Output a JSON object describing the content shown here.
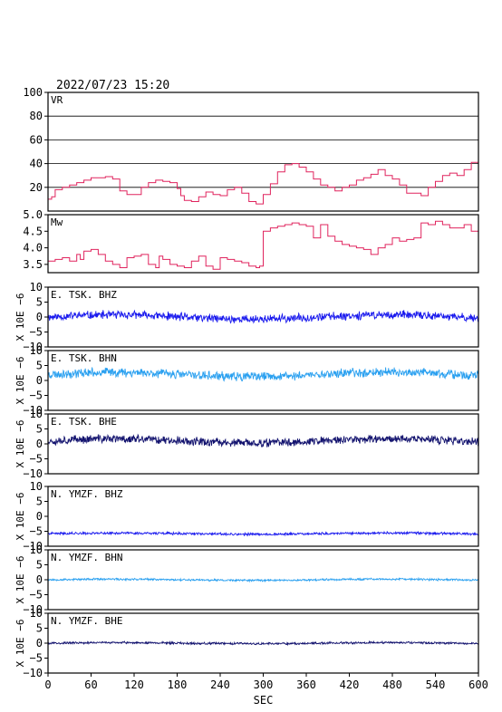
{
  "header": {
    "timestamp": "2022/07/23  15:20"
  },
  "colors": {
    "vr": "#e0245e",
    "mw": "#e0245e",
    "bhz": "#1a1aee",
    "bhn": "#2aa0f0",
    "bhe": "#12126e",
    "frame": "#000000"
  },
  "chart_data": [
    {
      "type": "line",
      "name": "vr-panel",
      "label": "VR",
      "ylim": [
        0,
        100
      ],
      "yticks": [
        "20",
        "40",
        "60",
        "80",
        "100"
      ],
      "grid": true,
      "x": [
        0,
        5,
        10,
        20,
        30,
        40,
        50,
        60,
        70,
        80,
        90,
        100,
        110,
        120,
        130,
        140,
        150,
        160,
        170,
        180,
        185,
        190,
        200,
        210,
        220,
        230,
        240,
        250,
        260,
        270,
        280,
        290,
        300,
        310,
        320,
        330,
        340,
        350,
        360,
        370,
        380,
        390,
        400,
        410,
        420,
        430,
        440,
        450,
        460,
        470,
        480,
        490,
        500,
        510,
        520,
        530,
        540,
        550,
        560,
        570,
        580,
        590,
        600
      ],
      "y": [
        10,
        12,
        18,
        20,
        22,
        24,
        26,
        28,
        28,
        29,
        27,
        17,
        14,
        14,
        20,
        24,
        26,
        25,
        24,
        19,
        13,
        9,
        8,
        12,
        16,
        14,
        13,
        18,
        20,
        15,
        8,
        6,
        14,
        23,
        33,
        39,
        40,
        37,
        33,
        27,
        22,
        20,
        17,
        20,
        22,
        26,
        28,
        31,
        35,
        30,
        27,
        22,
        15,
        15,
        13,
        20,
        25,
        30,
        32,
        30,
        35,
        41,
        44
      ]
    },
    {
      "type": "line",
      "name": "mw-panel",
      "label": "Mw",
      "ylim": [
        3.25,
        5.0
      ],
      "yticks": [
        "3.5",
        "4.0",
        "4.5",
        "5.0"
      ],
      "grid": false,
      "x": [
        0,
        10,
        20,
        30,
        40,
        45,
        50,
        60,
        70,
        80,
        90,
        100,
        110,
        120,
        130,
        140,
        150,
        155,
        160,
        170,
        180,
        190,
        200,
        210,
        220,
        230,
        240,
        250,
        260,
        270,
        280,
        290,
        295,
        300,
        310,
        320,
        330,
        340,
        350,
        360,
        370,
        380,
        390,
        400,
        410,
        420,
        430,
        440,
        450,
        460,
        470,
        480,
        490,
        500,
        510,
        520,
        530,
        540,
        550,
        560,
        570,
        580,
        590,
        600
      ],
      "y": [
        3.6,
        3.65,
        3.7,
        3.6,
        3.8,
        3.65,
        3.9,
        3.95,
        3.8,
        3.6,
        3.5,
        3.4,
        3.7,
        3.75,
        3.8,
        3.5,
        3.4,
        3.75,
        3.65,
        3.5,
        3.45,
        3.4,
        3.6,
        3.75,
        3.45,
        3.35,
        3.7,
        3.65,
        3.6,
        3.55,
        3.45,
        3.4,
        3.45,
        4.5,
        4.6,
        4.65,
        4.7,
        4.75,
        4.7,
        4.65,
        4.3,
        4.7,
        4.35,
        4.2,
        4.1,
        4.05,
        4.0,
        3.95,
        3.8,
        4.0,
        4.1,
        4.3,
        4.2,
        4.25,
        4.3,
        4.75,
        4.7,
        4.8,
        4.7,
        4.6,
        4.6,
        4.7,
        4.5,
        4.55
      ]
    },
    {
      "type": "line",
      "name": "seismogram",
      "label": "E. TSK. BHZ",
      "unit": "X 10E −6",
      "ylim": [
        -10,
        10
      ],
      "yticks": [
        "−10",
        "−5",
        "0",
        "5",
        "10"
      ],
      "baseline": 0,
      "amplitude": 1.2,
      "seed": 11,
      "colorKey": "bhz"
    },
    {
      "type": "line",
      "name": "seismogram",
      "label": "E. TSK. BHN",
      "unit": "X 10E −6",
      "ylim": [
        -10,
        10
      ],
      "yticks": [
        "−10",
        "−5",
        "0",
        "5",
        "10"
      ],
      "baseline": 2,
      "amplitude": 1.3,
      "seed": 23,
      "colorKey": "bhn"
    },
    {
      "type": "line",
      "name": "seismogram",
      "label": "E. TSK. BHE",
      "unit": "X 10E −6",
      "ylim": [
        -10,
        10
      ],
      "yticks": [
        "−10",
        "−5",
        "0",
        "5",
        "10"
      ],
      "baseline": 1,
      "amplitude": 1.2,
      "seed": 37,
      "colorKey": "bhe"
    },
    {
      "type": "line",
      "name": "seismogram",
      "label": "N. YMZF. BHZ",
      "unit": "X 10E −6",
      "ylim": [
        -10,
        10
      ],
      "yticks": [
        "−10",
        "−5",
        "0",
        "5",
        "10"
      ],
      "baseline": -5.8,
      "amplitude": 0.35,
      "seed": 41,
      "colorKey": "bhz"
    },
    {
      "type": "line",
      "name": "seismogram",
      "label": "N. YMZF. BHN",
      "unit": "X 10E −6",
      "ylim": [
        -10,
        10
      ],
      "yticks": [
        "−10",
        "−5",
        "0",
        "5",
        "10"
      ],
      "baseline": 0,
      "amplitude": 0.3,
      "seed": 53,
      "colorKey": "bhn"
    },
    {
      "type": "line",
      "name": "seismogram",
      "label": "N. YMZF. BHE",
      "unit": "X 10E −6",
      "ylim": [
        -10,
        10
      ],
      "yticks": [
        "−10",
        "−5",
        "0",
        "5",
        "10"
      ],
      "baseline": 0,
      "amplitude": 0.3,
      "seed": 67,
      "colorKey": "bhe"
    }
  ],
  "xaxis": {
    "label": "SEC",
    "xlim": [
      0,
      600
    ],
    "ticks": [
      "0",
      "60",
      "120",
      "180",
      "240",
      "300",
      "360",
      "420",
      "480",
      "540",
      "600"
    ]
  }
}
